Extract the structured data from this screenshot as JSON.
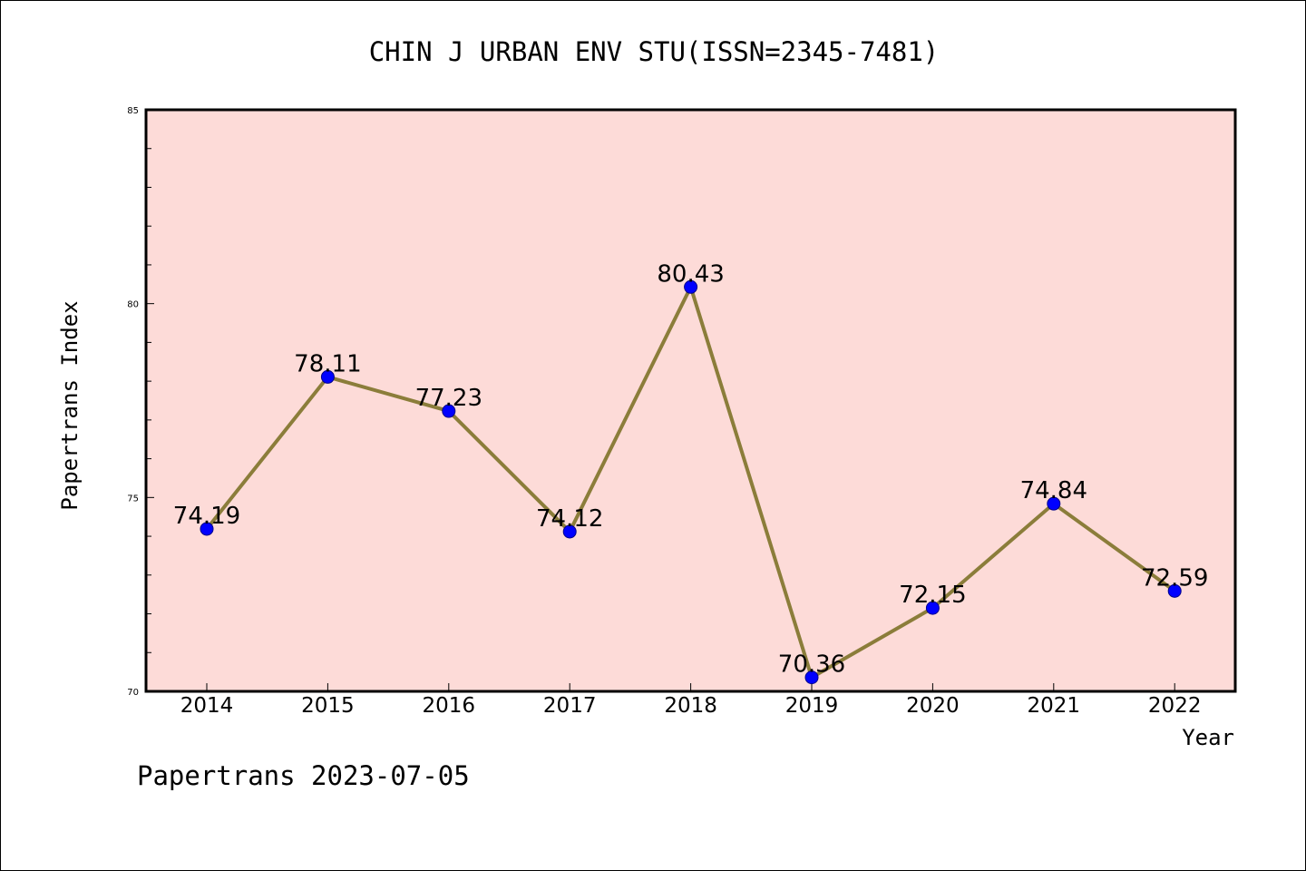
{
  "chart_data": {
    "type": "line",
    "title": "CHIN J URBAN ENV STU(ISSN=2345-7481)",
    "xlabel": "Year",
    "ylabel": "Papertrans Index",
    "categories": [
      "2014",
      "2015",
      "2016",
      "2017",
      "2018",
      "2019",
      "2020",
      "2021",
      "2022"
    ],
    "values": [
      74.19,
      78.11,
      77.23,
      74.12,
      80.43,
      70.36,
      72.15,
      74.84,
      72.59
    ],
    "data_labels": [
      "74.19",
      "78.11",
      "77.23",
      "74.12",
      "80.43",
      "70.36",
      "72.15",
      "74.84",
      "72.59"
    ],
    "ylim": [
      70,
      85
    ],
    "y_ticks": [
      70,
      75,
      80,
      85
    ],
    "y_tick_labels": [
      "70",
      "75",
      "80",
      "85"
    ],
    "y_minor_step": 1,
    "grid": false,
    "legend": "none",
    "colors": {
      "plot_background": "#fddbd8",
      "line": "#8b7d3a",
      "marker": "#0000ff",
      "axis": "#000000"
    }
  },
  "footer": {
    "text": "Papertrans 2023-07-05"
  }
}
